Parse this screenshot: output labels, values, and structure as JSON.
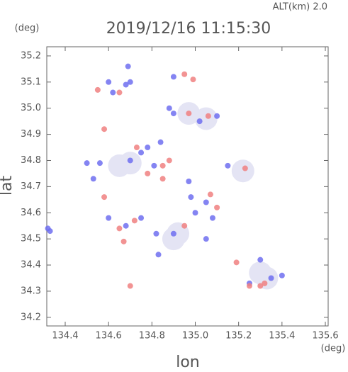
{
  "chart_data": {
    "type": "scatter",
    "title": "2019/12/16 11:15:30",
    "annotation": "ALT(km) 2.0",
    "y_unit": "(deg)",
    "x_unit": "(deg)",
    "xlabel": "lon",
    "ylabel": "lat",
    "xlim": [
      134.315,
      135.613
    ],
    "ylim": [
      34.167,
      35.235
    ],
    "xticks": [
      134.4,
      134.6,
      134.8,
      {
        "value": 135.0,
        "label": "135.0"
      },
      135.2,
      135.4,
      135.6
    ],
    "yticks": [
      34.2,
      34.3,
      34.4,
      34.5,
      34.6,
      34.7,
      34.8,
      34.9,
      {
        "value": 35.0,
        "label": "35.0"
      },
      35.1,
      35.2
    ],
    "series": [
      {
        "color": "#e4e4f4",
        "x": [
          134.9,
          134.92,
          135.3,
          135.33,
          134.65,
          134.7,
          135.05,
          134.97,
          135.22
        ],
        "values": [
          34.5,
          34.52,
          34.37,
          34.35,
          34.78,
          34.79,
          34.96,
          34.98,
          34.76
        ]
      },
      {
        "color": "#6e6ef0",
        "x": [
          134.33,
          134.32,
          134.5,
          134.56,
          134.53,
          134.6,
          134.62,
          134.69,
          134.7,
          134.7,
          134.75,
          134.78,
          134.81,
          134.68,
          134.84,
          134.9,
          134.88,
          135.1,
          135.02,
          134.97,
          135.05,
          135.0,
          134.9,
          134.75,
          134.6,
          135.25,
          135.35,
          135.3,
          135.15,
          135.4,
          134.68,
          134.82,
          135.08,
          134.83,
          134.98,
          135.05,
          134.9
        ],
        "values": [
          34.53,
          34.54,
          34.79,
          34.79,
          34.73,
          35.1,
          35.06,
          35.16,
          35.1,
          34.8,
          34.83,
          34.85,
          34.78,
          35.09,
          34.87,
          34.98,
          35.0,
          34.97,
          34.95,
          34.72,
          34.64,
          34.6,
          34.52,
          34.58,
          34.58,
          34.33,
          34.35,
          34.42,
          34.78,
          34.36,
          34.55,
          34.52,
          34.58,
          34.44,
          34.66,
          34.5,
          35.12
        ]
      },
      {
        "color": "#f08080",
        "x": [
          134.55,
          134.58,
          134.65,
          134.73,
          134.78,
          134.85,
          134.95,
          134.99,
          134.97,
          135.06,
          134.7,
          134.67,
          134.85,
          135.23,
          135.19,
          135.3,
          135.32,
          135.25,
          134.88,
          135.07,
          135.1,
          134.72,
          134.95,
          134.58,
          134.65
        ],
        "values": [
          35.07,
          34.92,
          35.06,
          34.85,
          34.75,
          34.78,
          35.13,
          35.11,
          34.98,
          34.97,
          34.32,
          34.49,
          34.73,
          34.77,
          34.41,
          34.32,
          34.33,
          34.32,
          34.8,
          34.67,
          34.62,
          34.57,
          34.55,
          34.66,
          34.54
        ]
      }
    ]
  }
}
